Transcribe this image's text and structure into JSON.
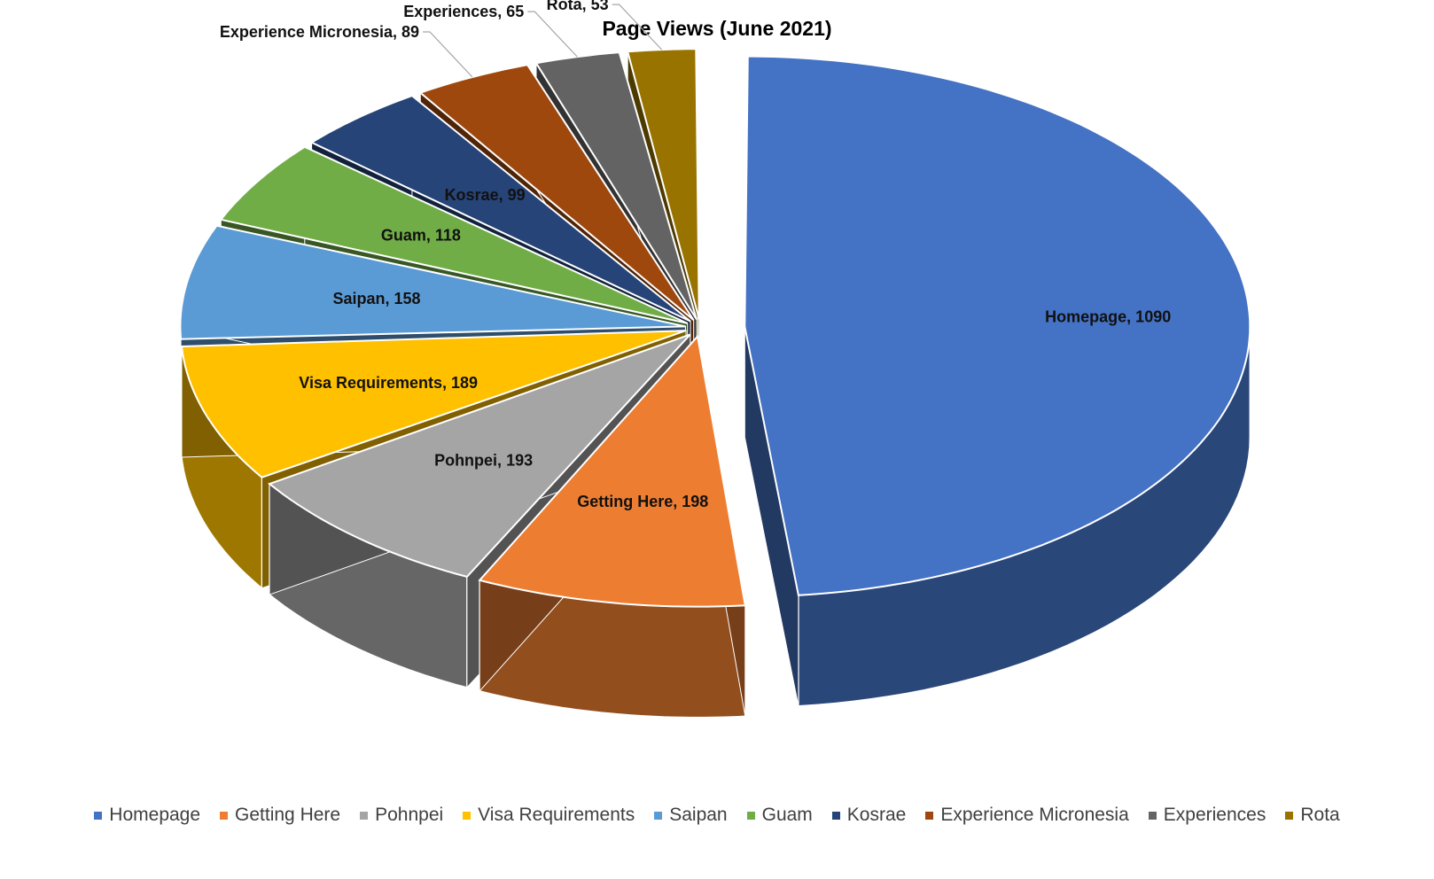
{
  "chart_data": {
    "type": "pie",
    "title": "Page Views (June 2021)",
    "categories": [
      "Homepage",
      "Getting Here",
      "Pohnpei",
      "Visa Requirements",
      "Saipan",
      "Guam",
      "Kosrae",
      "Experience Micronesia",
      "Experiences",
      "Rota"
    ],
    "values": [
      1090,
      198,
      193,
      189,
      158,
      118,
      99,
      89,
      65,
      53
    ],
    "labels": [
      "Homepage, 1090",
      "Getting Here, 198",
      "Pohnpei, 193",
      "Visa Requirements, 189",
      "Saipan, 158",
      "Guam, 118",
      "Kosrae, 99",
      "Experience Micronesia, 89",
      "Experiences, 65",
      "Rota, 53"
    ],
    "colors": [
      "#4472C4",
      "#ED7D31",
      "#A5A5A5",
      "#FFC000",
      "#5B9BD5",
      "#70AD47",
      "#264478",
      "#9E480E",
      "#636363",
      "#997300"
    ],
    "style": "3d-exploded",
    "legend_position": "bottom"
  }
}
